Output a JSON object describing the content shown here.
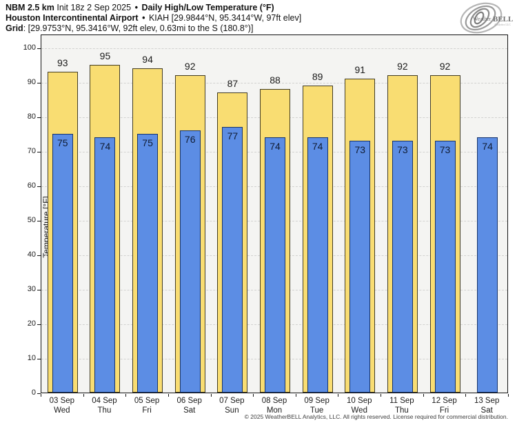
{
  "header": {
    "line1": {
      "model": "NBM 2.5 km",
      "init": "Init 18z 2 Sep 2025",
      "sep": "•",
      "title": "Daily High/Low Temperature (°F)"
    },
    "line2": {
      "station": "Houston Intercontinental Airport",
      "sep": "•",
      "details": "KIAH [29.9844°N, 95.3414°W, 97ft elev]"
    },
    "line3": {
      "label": "Grid",
      "details": ": [29.9753°N, 95.3416°W, 92ft elev, 0.63mi to the S (180.8°)]"
    }
  },
  "logo": {
    "brand_weather": "Weather",
    "brand_bell": "BELL",
    "tagline": "Analytics LLC"
  },
  "chart_data": {
    "type": "bar",
    "title": "Daily High/Low Temperature (°F)",
    "ylabel": "Temperature [°F]",
    "ylim": [
      0,
      104
    ],
    "yticks": [
      0,
      10,
      20,
      30,
      40,
      50,
      60,
      70,
      80,
      90,
      100
    ],
    "grid": "horizontal-dashed",
    "legend": "none",
    "categories": [
      {
        "date": "03 Sep",
        "day": "Wed"
      },
      {
        "date": "04 Sep",
        "day": "Thu"
      },
      {
        "date": "05 Sep",
        "day": "Fri"
      },
      {
        "date": "06 Sep",
        "day": "Sat"
      },
      {
        "date": "07 Sep",
        "day": "Sun"
      },
      {
        "date": "08 Sep",
        "day": "Mon"
      },
      {
        "date": "09 Sep",
        "day": "Tue"
      },
      {
        "date": "10 Sep",
        "day": "Wed"
      },
      {
        "date": "11 Sep",
        "day": "Thu"
      },
      {
        "date": "12 Sep",
        "day": "Fri"
      },
      {
        "date": "13 Sep",
        "day": "Sat"
      }
    ],
    "series": [
      {
        "name": "High",
        "color": "#f9dd72",
        "values": [
          93,
          95,
          94,
          92,
          87,
          88,
          89,
          91,
          92,
          92,
          null
        ]
      },
      {
        "name": "Low",
        "color": "#5c8de4",
        "values": [
          75,
          74,
          75,
          76,
          77,
          74,
          74,
          73,
          73,
          73,
          74
        ]
      }
    ]
  },
  "footer": "© 2025 WeatherBELL Analytics, LLC. All rights reserved. License required for commercial distribution."
}
